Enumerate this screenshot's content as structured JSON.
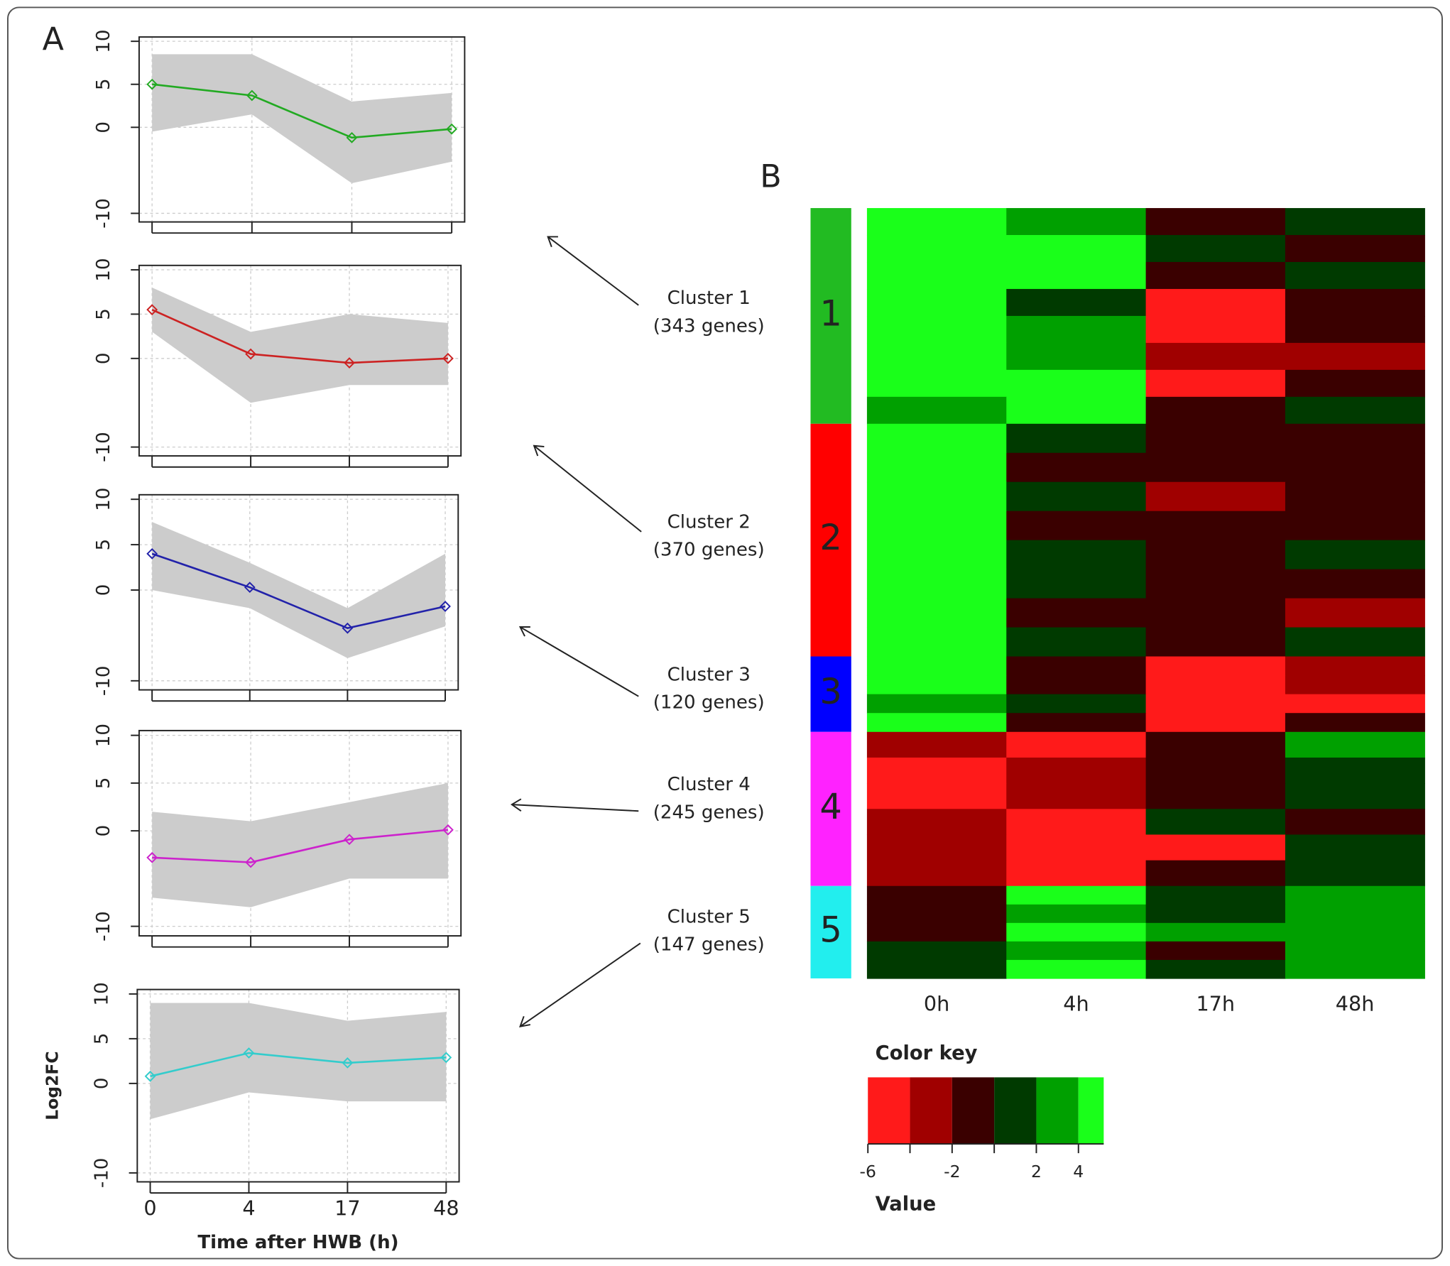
{
  "chart_data": [
    {
      "type": "line",
      "panel": "A",
      "categories": [
        null,
        null,
        null,
        null
      ],
      "series": [
        {
          "color": "#22aa22",
          "values": [
            5,
            3.7,
            -1.2,
            -0.2
          ]
        }
      ],
      "envelope": {
        "color": "#cccccc",
        "low": [
          -0.5,
          1.5,
          -6.5,
          -4
        ],
        "high": [
          8.5,
          8.5,
          3,
          4
        ]
      },
      "ylim": [
        -11,
        10.5
      ],
      "yticks": [
        -10,
        0,
        5,
        10
      ],
      "grid": true
    },
    {
      "type": "line",
      "categories": [
        null,
        null,
        null,
        null
      ],
      "series": [
        {
          "color": "#cc2222",
          "values": [
            5.5,
            0.5,
            -0.5,
            0
          ]
        }
      ],
      "envelope": {
        "color": "#cccccc",
        "low": [
          3,
          -5,
          -3,
          -3
        ],
        "high": [
          8,
          3,
          5,
          4
        ]
      },
      "ylim": [
        -11,
        10.5
      ],
      "yticks": [
        -10,
        0,
        5,
        10
      ],
      "grid": true
    },
    {
      "type": "line",
      "categories": [
        null,
        null,
        null,
        null
      ],
      "series": [
        {
          "color": "#2222aa",
          "values": [
            4,
            0.3,
            -4.2,
            -1.8
          ]
        }
      ],
      "envelope": {
        "color": "#cccccc",
        "low": [
          0,
          -2,
          -7.5,
          -4
        ],
        "high": [
          7.5,
          3,
          -2,
          4
        ]
      },
      "ylim": [
        -11,
        10.5
      ],
      "yticks": [
        -10,
        0,
        5,
        10
      ],
      "grid": true
    },
    {
      "type": "line",
      "categories": [
        null,
        null,
        null,
        null
      ],
      "series": [
        {
          "color": "#cc22cc",
          "values": [
            -2.8,
            -3.3,
            -0.9,
            0.1
          ]
        }
      ],
      "envelope": {
        "color": "#cccccc",
        "low": [
          -7,
          -8,
          -5,
          -5
        ],
        "high": [
          2,
          1,
          3,
          5
        ]
      },
      "ylim": [
        -11,
        10.5
      ],
      "yticks": [
        -10,
        0,
        5,
        10
      ],
      "grid": true
    },
    {
      "type": "line",
      "categories": [
        "0",
        "4",
        "17",
        "48"
      ],
      "xlabel": "Time after HWB (h)",
      "ylabel": "Log2FC",
      "series": [
        {
          "color": "#33cccc",
          "values": [
            0.8,
            3.4,
            2.3,
            2.9
          ]
        }
      ],
      "envelope": {
        "color": "#cccccc",
        "low": [
          -4,
          -1,
          -2,
          -2
        ],
        "high": [
          9,
          9,
          7,
          8
        ]
      },
      "ylim": [
        -11,
        10.5
      ],
      "yticks": [
        -10,
        0,
        5,
        10
      ],
      "grid": true
    },
    {
      "type": "heatmap",
      "panel": "B",
      "columns": [
        "0h",
        "4h",
        "17h",
        "48h"
      ],
      "clusters": [
        {
          "label": "1",
          "name": "Cluster 1",
          "gene_label": "(343 genes)",
          "genes": 343,
          "color": "#22bb22",
          "rows": [
            [
              4,
              2,
              -1,
              1
            ],
            [
              4,
              4,
              0,
              -1
            ],
            [
              4,
              4,
              -2,
              1
            ],
            [
              4,
              0,
              -5,
              -2
            ],
            [
              4,
              2,
              -6,
              -1
            ],
            [
              4,
              3,
              -4,
              -3
            ],
            [
              4,
              4,
              -5,
              -2
            ],
            [
              2,
              4,
              -1,
              0
            ]
          ]
        },
        {
          "label": "2",
          "name": "Cluster 2",
          "gene_label": "(370 genes)",
          "genes": 370,
          "color": "#ff0000",
          "rows": [
            [
              4,
              1,
              -2,
              -2
            ],
            [
              4,
              -1,
              -2,
              -2
            ],
            [
              4,
              0,
              -4,
              -2
            ],
            [
              4,
              -1,
              -2,
              -1
            ],
            [
              4,
              1,
              -2,
              0
            ],
            [
              4,
              0,
              -2,
              -2
            ],
            [
              4,
              -1,
              -2,
              -4
            ],
            [
              4,
              0,
              -1,
              1
            ]
          ]
        },
        {
          "label": "3",
          "name": "Cluster 3",
          "gene_label": "(120 genes)",
          "genes": 120,
          "color": "#0000ff",
          "rows": [
            [
              4,
              -2,
              -6,
              -4
            ],
            [
              4,
              -1,
              -6,
              -3
            ],
            [
              3,
              0,
              -6,
              -5
            ],
            [
              4,
              -1,
              -5,
              -2
            ]
          ]
        },
        {
          "label": "4",
          "name": "Cluster 4",
          "gene_label": "(245 genes)",
          "genes": 245,
          "color": "#ff22ff",
          "rows": [
            [
              -3,
              -6,
              -1,
              2
            ],
            [
              -6,
              -3,
              -2,
              1
            ],
            [
              -6,
              -4,
              -2,
              0
            ],
            [
              -3,
              -5,
              0,
              -1
            ],
            [
              -4,
              -6,
              -5,
              1
            ],
            [
              -3,
              -6,
              -2,
              0
            ]
          ]
        },
        {
          "label": "5",
          "name": "Cluster 5",
          "gene_label": "(147 genes)",
          "genes": 147,
          "color": "#22eeee",
          "rows": [
            [
              -1,
              4,
              0,
              2
            ],
            [
              -2,
              3,
              1,
              3
            ],
            [
              -1,
              4,
              2,
              2
            ],
            [
              0,
              3,
              -1,
              3
            ],
            [
              1,
              4,
              0,
              2
            ]
          ]
        }
      ],
      "colorkey": {
        "title": "Color key",
        "xlabel": "Value",
        "bins": [
          -6,
          -4,
          -2,
          0,
          2,
          4,
          5.2
        ],
        "colors": [
          "#ff1a1a",
          "#a00000",
          "#3a0000",
          "#003a00",
          "#00a000",
          "#1aff1a"
        ],
        "xlim": [
          -6,
          5.2
        ],
        "xticks": [
          -6,
          -2,
          2,
          4
        ]
      }
    }
  ]
}
